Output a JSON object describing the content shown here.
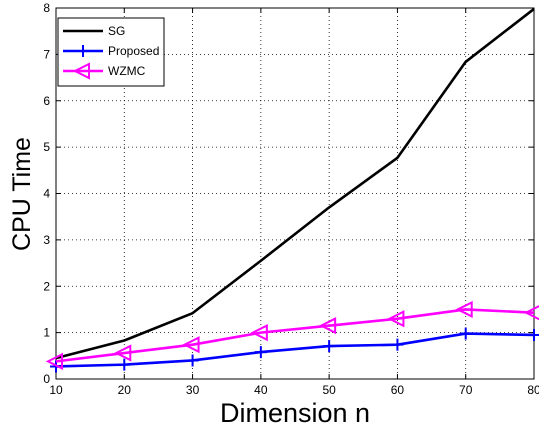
{
  "chart_data": {
    "type": "line",
    "title": "",
    "xlabel": "Dimension n",
    "ylabel": "CPU Time",
    "x": [
      10,
      20,
      30,
      40,
      50,
      60,
      70,
      80
    ],
    "xlim": [
      10,
      80
    ],
    "ylim": [
      0,
      8
    ],
    "xticks": [
      10,
      20,
      30,
      40,
      50,
      60,
      70,
      80
    ],
    "yticks": [
      0,
      1,
      2,
      3,
      4,
      5,
      6,
      7,
      8
    ],
    "grid": true,
    "legend_position": "top-left",
    "series": [
      {
        "name": "SG",
        "color": "#000000",
        "marker": "none",
        "values": [
          0.45,
          0.83,
          1.42,
          2.55,
          3.7,
          4.77,
          6.84,
          7.98
        ]
      },
      {
        "name": "Proposed",
        "color": "#0000ff",
        "marker": "plus",
        "values": [
          0.27,
          0.31,
          0.4,
          0.58,
          0.71,
          0.74,
          0.98,
          0.95
        ]
      },
      {
        "name": "WZMC",
        "color": "#ff00ff",
        "marker": "triangle-left",
        "values": [
          0.38,
          0.56,
          0.74,
          1.0,
          1.15,
          1.3,
          1.5,
          1.43
        ]
      }
    ]
  }
}
